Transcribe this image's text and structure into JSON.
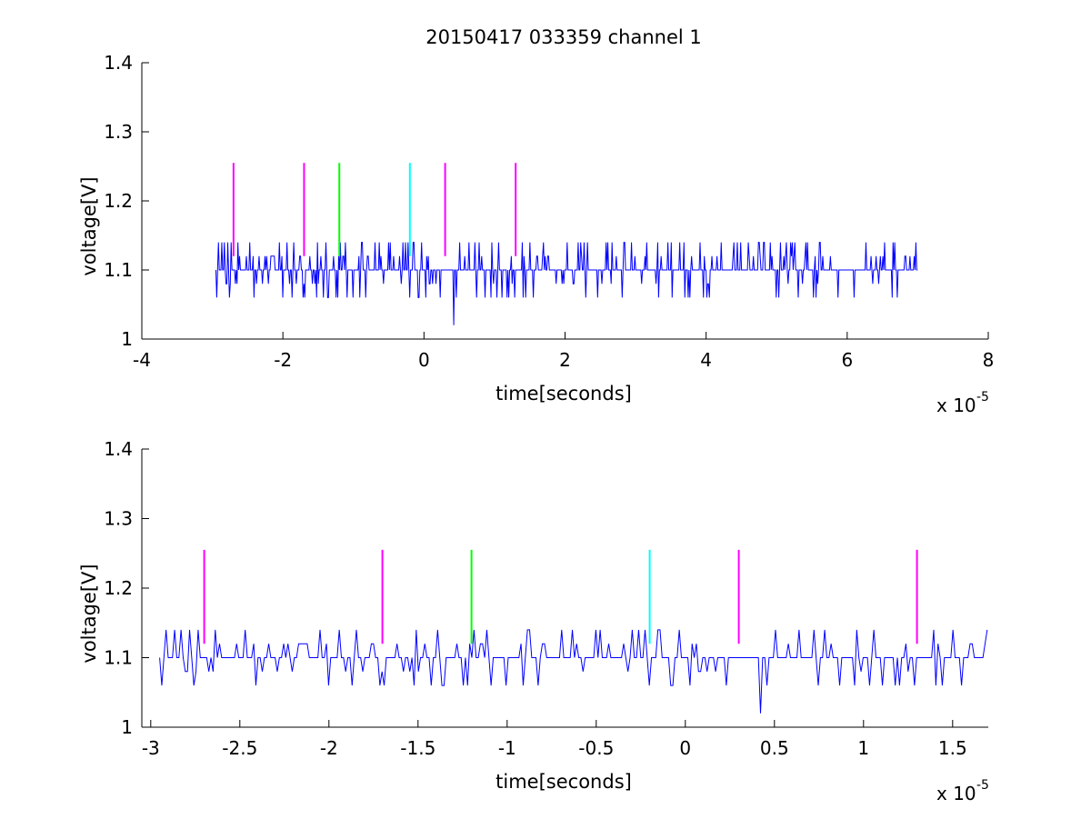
{
  "title": "20150417 033359 channel 1",
  "colors": {
    "signal": "#0000ff",
    "marker_magenta": "#ff00ff",
    "marker_green": "#00ff00",
    "marker_cyan": "#00ffff",
    "axis": "#000000",
    "background": "#ffffff"
  },
  "chart_data": [
    {
      "type": "line",
      "title": "20150417 033359 channel 1",
      "xlabel": "time[seconds]",
      "ylabel": "voltage[V]",
      "x_exponent_label": "x 10",
      "x_exponent": "-5",
      "xlim": [
        -4,
        8
      ],
      "ylim": [
        1,
        1.4
      ],
      "xticks": [
        -4,
        -2,
        0,
        2,
        4,
        6,
        8
      ],
      "xtick_labels": [
        "-4",
        "-2",
        "0",
        "2",
        "4",
        "6",
        "8"
      ],
      "yticks": [
        1,
        1.1,
        1.2,
        1.3,
        1.4
      ],
      "ytick_labels": [
        "1",
        "1.1",
        "1.2",
        "1.3",
        "1.4"
      ],
      "grid": false,
      "signal": {
        "x_start": -2.95,
        "x_end": 7.0,
        "baseline": 1.1,
        "levels": [
          1.02,
          1.06,
          1.08,
          1.1,
          1.12,
          1.14
        ],
        "min_value": 1.02,
        "min_at": 0.42
      },
      "markers": [
        {
          "x": -2.7,
          "y_top": 1.255,
          "y_bottom": 1.12,
          "color": "magenta"
        },
        {
          "x": -1.7,
          "y_top": 1.255,
          "y_bottom": 1.12,
          "color": "magenta"
        },
        {
          "x": -1.2,
          "y_top": 1.255,
          "y_bottom": 1.12,
          "color": "green"
        },
        {
          "x": -0.2,
          "y_top": 1.255,
          "y_bottom": 1.12,
          "color": "cyan"
        },
        {
          "x": 0.3,
          "y_top": 1.255,
          "y_bottom": 1.12,
          "color": "magenta"
        },
        {
          "x": 1.3,
          "y_top": 1.255,
          "y_bottom": 1.12,
          "color": "magenta"
        }
      ]
    },
    {
      "type": "line",
      "title": "",
      "xlabel": "time[seconds]",
      "ylabel": "voltage[V]",
      "x_exponent_label": "x 10",
      "x_exponent": "-5",
      "xlim": [
        -3.05,
        1.7
      ],
      "ylim": [
        1,
        1.4
      ],
      "xticks": [
        -3,
        -2.5,
        -2,
        -1.5,
        -1,
        -0.5,
        0,
        0.5,
        1,
        1.5
      ],
      "xtick_labels": [
        "-3",
        "-2.5",
        "-2",
        "-1.5",
        "-1",
        "-0.5",
        "0",
        "0.5",
        "1",
        "1.5"
      ],
      "yticks": [
        1,
        1.1,
        1.2,
        1.3,
        1.4
      ],
      "ytick_labels": [
        "1",
        "1.1",
        "1.2",
        "1.3",
        "1.4"
      ],
      "grid": false,
      "signal": {
        "x_start": -2.95,
        "x_end": 1.7,
        "baseline": 1.1,
        "levels": [
          1.02,
          1.06,
          1.08,
          1.1,
          1.12,
          1.14
        ],
        "min_value": 1.02,
        "min_at": 0.42
      },
      "markers": [
        {
          "x": -2.7,
          "y_top": 1.255,
          "y_bottom": 1.12,
          "color": "magenta"
        },
        {
          "x": -1.7,
          "y_top": 1.255,
          "y_bottom": 1.12,
          "color": "magenta"
        },
        {
          "x": -1.2,
          "y_top": 1.255,
          "y_bottom": 1.12,
          "color": "green"
        },
        {
          "x": -0.2,
          "y_top": 1.255,
          "y_bottom": 1.12,
          "color": "cyan"
        },
        {
          "x": 0.3,
          "y_top": 1.255,
          "y_bottom": 1.12,
          "color": "magenta"
        },
        {
          "x": 1.3,
          "y_top": 1.255,
          "y_bottom": 1.12,
          "color": "magenta"
        }
      ]
    }
  ]
}
